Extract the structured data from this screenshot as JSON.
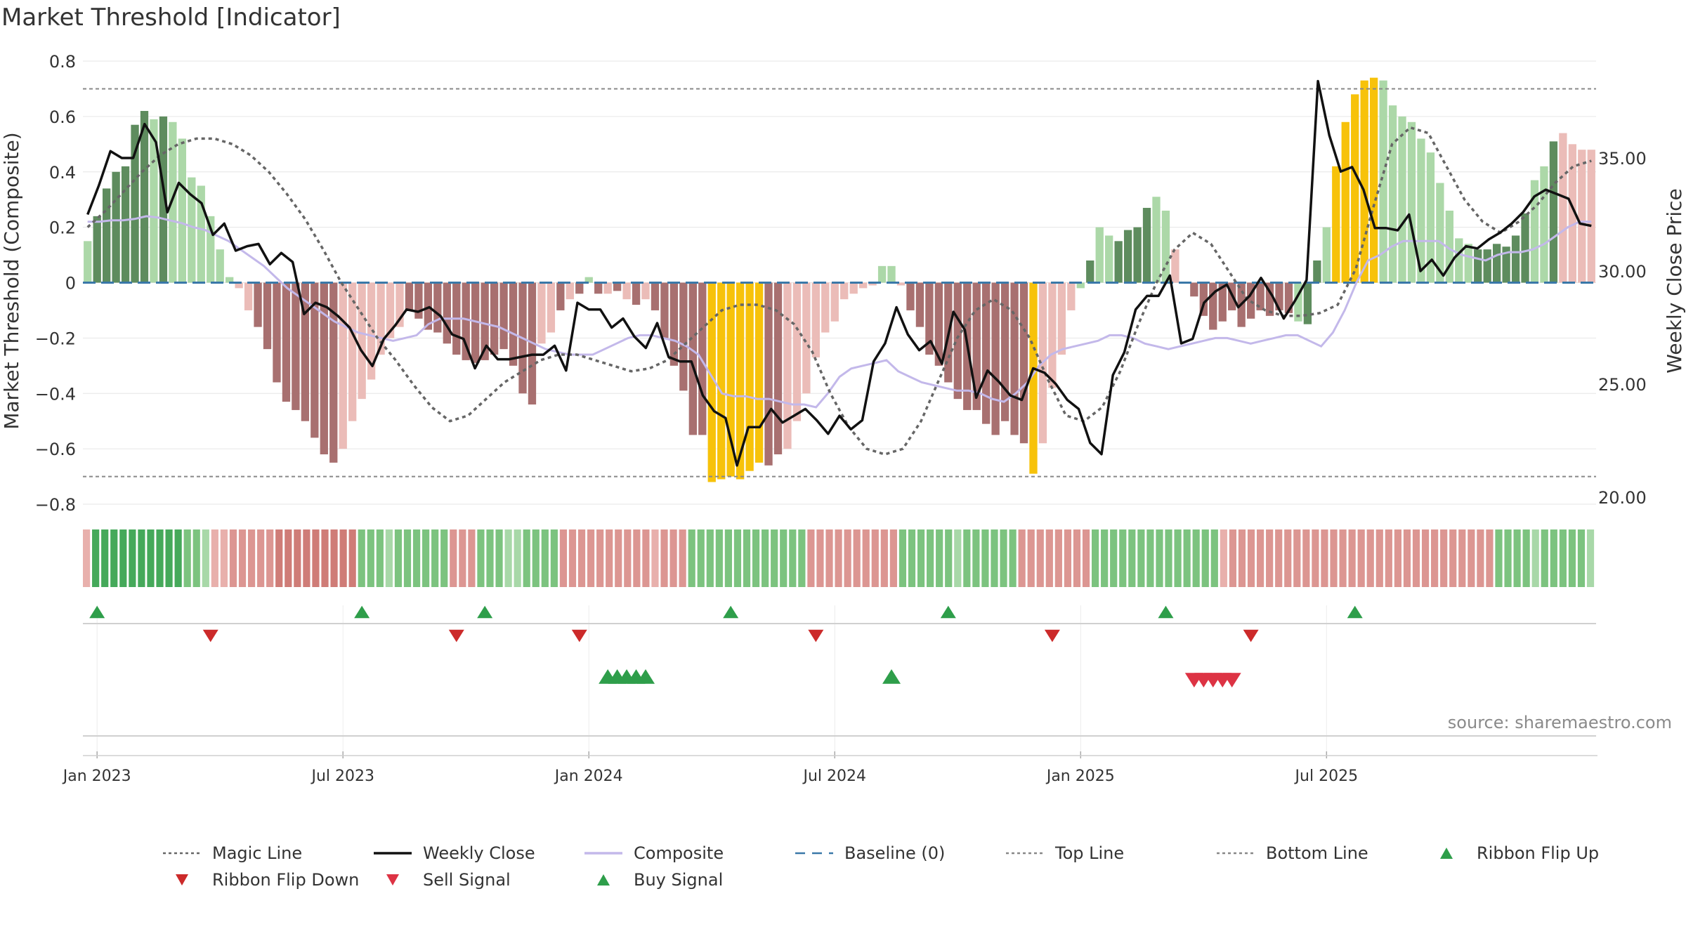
{
  "title": "Market Threshold [Indicator]",
  "source": "source: sharemaestro.com",
  "chart_data": {
    "type": "bar",
    "title": "Market Threshold [Indicator]",
    "ylabel": "Market Threshold (Composite)",
    "y2label": "Weekly Close Price",
    "ylim": [
      -0.8,
      0.8
    ],
    "y2lim": [
      20,
      35
    ],
    "y_ticks": [
      "0.8",
      "0.6",
      "0.4",
      "0.2",
      "0",
      "−0.2",
      "−0.4",
      "−0.6",
      "−0.8"
    ],
    "y2_ticks": [
      "35.00",
      "30.00",
      "25.00",
      "20.00"
    ],
    "x_ticks": [
      "Jan 2023",
      "Jul 2023",
      "Jan 2024",
      "Jul 2024",
      "Jan 2025",
      "Jul 2025"
    ],
    "top_line": 0.7,
    "bottom_line": -0.7,
    "composite": [
      0.15,
      0.24,
      0.34,
      0.4,
      0.42,
      0.57,
      0.62,
      0.59,
      0.6,
      0.58,
      0.52,
      0.38,
      0.35,
      0.24,
      0.12,
      0.02,
      -0.02,
      -0.1,
      -0.16,
      -0.24,
      -0.36,
      -0.43,
      -0.46,
      -0.5,
      -0.56,
      -0.62,
      -0.65,
      -0.6,
      -0.5,
      -0.42,
      -0.35,
      -0.26,
      -0.2,
      -0.16,
      -0.1,
      -0.13,
      -0.17,
      -0.18,
      -0.22,
      -0.26,
      -0.28,
      -0.29,
      -0.28,
      -0.26,
      -0.24,
      -0.3,
      -0.4,
      -0.44,
      -0.22,
      -0.18,
      -0.1,
      -0.06,
      -0.04,
      0.02,
      -0.04,
      -0.04,
      -0.03,
      -0.06,
      -0.08,
      -0.06,
      -0.1,
      -0.2,
      -0.3,
      -0.39,
      -0.55,
      -0.55,
      -0.72,
      -0.71,
      -0.7,
      -0.71,
      -0.68,
      -0.65,
      -0.66,
      -0.62,
      -0.6,
      -0.5,
      -0.4,
      -0.27,
      -0.18,
      -0.14,
      -0.06,
      -0.04,
      -0.02,
      -0.01,
      0.06,
      0.06,
      -0.01,
      -0.1,
      -0.16,
      -0.26,
      -0.3,
      -0.36,
      -0.42,
      -0.46,
      -0.46,
      -0.51,
      -0.55,
      -0.5,
      -0.55,
      -0.58,
      -0.69,
      -0.58,
      -0.38,
      -0.26,
      -0.1,
      -0.02,
      0.08,
      0.2,
      0.17,
      0.15,
      0.19,
      0.2,
      0.27,
      0.31,
      0.26,
      0.12,
      0.0,
      -0.05,
      -0.12,
      -0.17,
      -0.14,
      -0.1,
      -0.16,
      -0.13,
      -0.1,
      -0.12,
      -0.1,
      -0.11,
      -0.14,
      -0.15,
      0.08,
      0.2,
      0.42,
      0.58,
      0.68,
      0.73,
      0.74,
      0.73,
      0.64,
      0.6,
      0.58,
      0.52,
      0.47,
      0.36,
      0.26,
      0.16,
      0.14,
      0.12,
      0.12,
      0.14,
      0.13,
      0.17,
      0.25,
      0.37,
      0.42,
      0.51,
      0.54,
      0.5,
      0.48,
      0.48
    ],
    "bar_color_category": [
      "lg",
      "dg",
      "dg",
      "dg",
      "dg",
      "dg",
      "dg",
      "lg",
      "dg",
      "lg",
      "lg",
      "lg",
      "lg",
      "lg",
      "lg",
      "lg",
      "lr",
      "lr",
      "dr",
      "dr",
      "dr",
      "dr",
      "dr",
      "dr",
      "dr",
      "dr",
      "dr",
      "lr",
      "lr",
      "lr",
      "lr",
      "lr",
      "lr",
      "lr",
      "dr",
      "dr",
      "dr",
      "dr",
      "dr",
      "dr",
      "dr",
      "dr",
      "dr",
      "dr",
      "dr",
      "dr",
      "dr",
      "dr",
      "lr",
      "lr",
      "dr",
      "lr",
      "dr",
      "lg",
      "dr",
      "lr",
      "dr",
      "lr",
      "dr",
      "lr",
      "dr",
      "dr",
      "dr",
      "dr",
      "dr",
      "dr",
      "y",
      "y",
      "y",
      "y",
      "y",
      "y",
      "dr",
      "dr",
      "lr",
      "lr",
      "lr",
      "lr",
      "lr",
      "lr",
      "lr",
      "lr",
      "lr",
      "lr",
      "lg",
      "lg",
      "lr",
      "dr",
      "dr",
      "dr",
      "dr",
      "dr",
      "dr",
      "dr",
      "dr",
      "dr",
      "dr",
      "dr",
      "dr",
      "dr",
      "y",
      "lr",
      "lr",
      "lr",
      "lr",
      "lg",
      "dg",
      "lg",
      "lg",
      "dg",
      "dg",
      "dg",
      "dg",
      "lg",
      "lg",
      "lr",
      "dr",
      "dr",
      "dr",
      "dr",
      "dr",
      "dr",
      "dr",
      "dr",
      "dr",
      "dr",
      "dr",
      "dr",
      "lg",
      "dg",
      "dg",
      "lg",
      "y",
      "y",
      "y",
      "y",
      "y",
      "lg",
      "lg",
      "lg",
      "lg",
      "lg",
      "lg",
      "lg",
      "lg",
      "lg",
      "lg",
      "dg",
      "dg",
      "dg",
      "dg",
      "dg",
      "dg",
      "lg",
      "lg",
      "dg"
    ],
    "weekly_close": [
      32.5,
      33.8,
      35.3,
      35.0,
      35.0,
      36.5,
      35.7,
      32.6,
      33.9,
      33.4,
      33.0,
      31.6,
      32.1,
      30.9,
      31.1,
      31.2,
      30.3,
      30.8,
      30.4,
      28.1,
      28.6,
      28.4,
      28.0,
      27.5,
      26.5,
      25.8,
      27.0,
      27.6,
      28.3,
      28.2,
      28.4,
      28.0,
      27.2,
      27.0,
      25.7,
      26.7,
      26.1,
      26.1,
      26.2,
      26.3,
      26.3,
      26.7,
      25.6,
      28.6,
      28.3,
      28.3,
      27.5,
      27.9,
      27.1,
      26.6,
      27.7,
      26.2,
      26.0,
      26.0,
      24.5,
      23.8,
      23.5,
      21.4,
      23.1,
      23.1,
      23.9,
      23.3,
      23.6,
      23.9,
      23.4,
      22.8,
      23.6,
      23.0,
      23.4,
      26.0,
      26.8,
      28.4,
      27.2,
      26.5,
      26.9,
      25.9,
      28.2,
      27.4,
      24.4,
      25.6,
      25.1,
      24.5,
      24.3,
      25.7,
      25.5,
      25.0,
      24.3,
      23.9,
      22.4,
      21.9,
      25.4,
      26.4,
      28.3,
      28.9,
      28.9,
      29.8,
      26.8,
      27.0,
      28.6,
      29.1,
      29.4,
      28.4,
      28.9,
      29.7,
      28.9,
      27.9,
      28.7,
      29.6,
      38.4,
      36.0,
      34.4,
      34.6,
      33.6,
      31.9,
      31.9,
      31.8,
      32.5,
      30.0,
      30.5,
      29.8,
      30.6,
      31.1,
      31.0,
      31.4,
      31.7,
      32.1,
      32.6,
      33.3,
      33.6,
      33.4,
      33.2,
      32.1,
      32.0
    ],
    "composite_ma": [
      0.22,
      0.22,
      0.225,
      0.225,
      0.23,
      0.24,
      0.235,
      0.225,
      0.215,
      0.2,
      0.19,
      0.17,
      0.15,
      0.12,
      0.09,
      0.06,
      0.02,
      -0.02,
      -0.05,
      -0.08,
      -0.11,
      -0.14,
      -0.16,
      -0.18,
      -0.19,
      -0.2,
      -0.21,
      -0.2,
      -0.19,
      -0.15,
      -0.13,
      -0.13,
      -0.13,
      -0.14,
      -0.15,
      -0.16,
      -0.18,
      -0.2,
      -0.22,
      -0.24,
      -0.25,
      -0.26,
      -0.26,
      -0.26,
      -0.24,
      -0.22,
      -0.2,
      -0.19,
      -0.19,
      -0.2,
      -0.21,
      -0.23,
      -0.26,
      -0.33,
      -0.4,
      -0.41,
      -0.41,
      -0.42,
      -0.42,
      -0.43,
      -0.44,
      -0.44,
      -0.45,
      -0.4,
      -0.34,
      -0.31,
      -0.3,
      -0.29,
      -0.28,
      -0.32,
      -0.34,
      -0.36,
      -0.37,
      -0.38,
      -0.39,
      -0.39,
      -0.4,
      -0.42,
      -0.43,
      -0.4,
      -0.36,
      -0.3,
      -0.26,
      -0.24,
      -0.23,
      -0.22,
      -0.21,
      -0.19,
      -0.19,
      -0.2,
      -0.22,
      -0.23,
      -0.24,
      -0.23,
      -0.22,
      -0.21,
      -0.2,
      -0.2,
      -0.21,
      -0.22,
      -0.21,
      -0.2,
      -0.19,
      -0.19,
      -0.21,
      -0.23,
      -0.18,
      -0.1,
      0.0,
      0.08,
      0.1,
      0.13,
      0.15,
      0.15,
      0.15,
      0.15,
      0.12,
      0.1,
      0.09,
      0.08,
      0.1,
      0.11,
      0.11,
      0.12,
      0.14,
      0.17,
      0.2,
      0.22,
      0.22
    ],
    "magic_line": [
      0.2,
      0.26,
      0.33,
      0.4,
      0.46,
      0.5,
      0.52,
      0.52,
      0.5,
      0.46,
      0.4,
      0.32,
      0.23,
      0.12,
      0.0,
      -0.1,
      -0.2,
      -0.28,
      -0.37,
      -0.45,
      -0.5,
      -0.48,
      -0.42,
      -0.36,
      -0.32,
      -0.28,
      -0.26,
      -0.26,
      -0.28,
      -0.3,
      -0.32,
      -0.31,
      -0.28,
      -0.22,
      -0.16,
      -0.1,
      -0.08,
      -0.08,
      -0.1,
      -0.15,
      -0.25,
      -0.4,
      -0.52,
      -0.6,
      -0.62,
      -0.6,
      -0.5,
      -0.35,
      -0.2,
      -0.1,
      -0.06,
      -0.1,
      -0.2,
      -0.35,
      -0.48,
      -0.5,
      -0.45,
      -0.32,
      -0.15,
      0.0,
      0.12,
      0.18,
      0.14,
      0.04,
      -0.06,
      -0.1,
      -0.12,
      -0.12,
      -0.11,
      -0.08,
      0.05,
      0.28,
      0.5,
      0.56,
      0.54,
      0.42,
      0.3,
      0.22,
      0.18,
      0.22,
      0.28,
      0.36,
      0.42,
      0.44
    ],
    "ribbon_level": [
      0,
      2,
      3,
      3,
      3,
      3,
      3,
      3,
      2,
      2,
      2,
      1,
      1,
      0,
      0,
      0,
      1,
      1,
      1,
      1,
      1,
      2,
      2,
      2,
      2,
      2,
      2,
      2,
      2,
      2,
      1,
      1,
      1,
      0,
      1,
      1,
      1,
      1,
      1,
      1,
      1,
      1,
      1,
      1,
      1,
      1,
      0,
      0,
      1,
      1,
      1,
      1,
      1,
      1,
      1,
      1,
      1,
      1,
      1,
      1,
      1,
      1,
      0,
      1,
      1,
      1,
      1,
      1,
      1,
      1,
      1,
      1,
      1,
      1,
      1,
      1,
      1,
      1,
      1,
      1,
      1,
      1,
      1,
      1,
      1,
      1,
      1,
      1,
      1,
      1,
      1,
      1,
      1,
      1,
      1,
      0,
      1,
      1,
      1,
      1,
      1,
      1,
      1,
      1,
      1,
      1,
      1,
      1,
      1,
      1,
      1,
      1,
      1,
      1,
      1,
      1,
      1,
      1,
      1,
      1,
      1,
      1,
      1,
      1,
      0,
      1,
      1,
      1,
      1,
      1,
      1,
      1,
      1,
      1,
      1,
      1,
      1,
      1,
      1,
      1,
      1,
      1,
      1,
      1,
      1,
      1,
      1,
      1,
      1,
      1,
      1,
      1,
      1,
      1,
      1,
      1,
      1,
      1,
      0,
      1,
      1,
      1,
      1,
      1,
      0
    ],
    "ribbon_side": [
      "r",
      "g",
      "g",
      "g",
      "g",
      "g",
      "g",
      "g",
      "g",
      "g",
      "g",
      "g",
      "g",
      "g",
      "r",
      "r",
      "r",
      "r",
      "r",
      "r",
      "r",
      "r",
      "r",
      "r",
      "r",
      "r",
      "r",
      "r",
      "r",
      "r",
      "g",
      "g",
      "g",
      "g",
      "g",
      "g",
      "g",
      "g",
      "g",
      "g",
      "r",
      "r",
      "r",
      "g",
      "g",
      "g",
      "g",
      "g",
      "g",
      "g",
      "g",
      "g",
      "r",
      "r",
      "r",
      "r",
      "r",
      "r",
      "r",
      "r",
      "r",
      "r",
      "r",
      "r",
      "r",
      "r",
      "g",
      "g",
      "g",
      "g",
      "g",
      "g",
      "g",
      "g",
      "g",
      "g",
      "g",
      "g",
      "g",
      "r",
      "r",
      "r",
      "r",
      "r",
      "r",
      "r",
      "r",
      "r",
      "r",
      "g",
      "g",
      "g",
      "g",
      "g",
      "g",
      "g",
      "g",
      "g",
      "g",
      "g",
      "g",
      "g",
      "r",
      "r",
      "r",
      "r",
      "r",
      "r",
      "r",
      "r",
      "g",
      "g",
      "g",
      "g",
      "g",
      "g",
      "g",
      "g",
      "g",
      "g",
      "g",
      "g",
      "g",
      "g",
      "r",
      "r",
      "r",
      "r",
      "r",
      "r",
      "r",
      "r",
      "r",
      "r",
      "r",
      "r",
      "r",
      "r",
      "r",
      "r",
      "r",
      "r",
      "r",
      "r",
      "r",
      "r",
      "r",
      "r",
      "r",
      "r",
      "r",
      "r",
      "r",
      "r",
      "g",
      "g",
      "g",
      "g",
      "g",
      "g",
      "g",
      "g",
      "g",
      "g",
      "g",
      "g",
      "g"
    ],
    "ribbon_flip_up_weeks": [
      1,
      29,
      42,
      68,
      91,
      114,
      134
    ],
    "ribbon_flip_down_weeks": [
      13,
      39,
      52,
      77,
      102,
      123
    ],
    "buy_signal_weeks": [
      55,
      56,
      57,
      58,
      59,
      85
    ],
    "sell_signal_weeks": [
      117,
      118,
      119,
      120,
      121
    ],
    "legend": [
      {
        "name": "Magic Line",
        "style": "dotted",
        "color": "#666666"
      },
      {
        "name": "Weekly Close",
        "style": "solid",
        "color": "#111111"
      },
      {
        "name": "Composite",
        "style": "solid",
        "color": "#c3b8ea"
      },
      {
        "name": "Baseline (0)",
        "style": "dashed",
        "color": "#3a78a8"
      },
      {
        "name": "Top Line",
        "style": "dotted",
        "color": "#888888"
      },
      {
        "name": "Bottom Line",
        "style": "dotted",
        "color": "#888888"
      },
      {
        "name": "Ribbon Flip Up",
        "style": "triangle-up",
        "color": "#2e9e4a"
      },
      {
        "name": "Ribbon Flip Down",
        "style": "triangle-down",
        "color": "#cc2a2a"
      },
      {
        "name": "Sell Signal",
        "style": "triangle-down",
        "color": "#dd3344"
      },
      {
        "name": "Buy Signal",
        "style": "triangle-up",
        "color": "#2e9e4a"
      }
    ],
    "colors": {
      "dark_green": "#5e8c5e",
      "light_green": "#acd8a8",
      "dark_red": "#a87070",
      "light_red": "#ebbcb8",
      "yellow": "#f7c20a",
      "weekly_close": "#111111",
      "composite_line": "#c3b8ea",
      "magic_line": "#666666",
      "baseline": "#3a78a8"
    }
  }
}
